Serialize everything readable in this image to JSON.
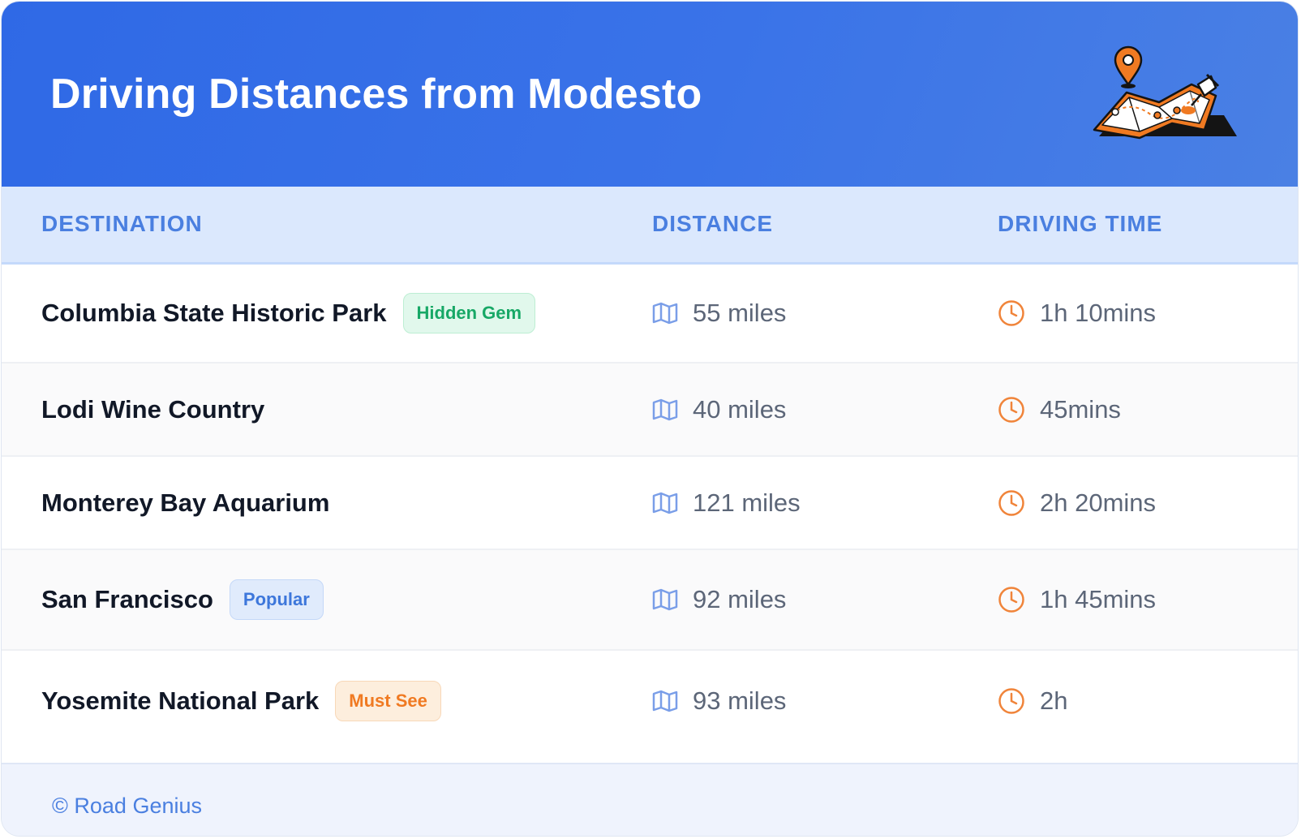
{
  "title": "Driving Distances from Modesto",
  "header_illustration": "map-pin-illustration",
  "table": {
    "columns": [
      "DESTINATION",
      "DISTANCE",
      "DRIVING TIME"
    ],
    "rows": [
      {
        "destination": "Columbia State Historic Park",
        "badge": "Hidden Gem",
        "badge_style": "green",
        "distance": "55 miles",
        "time": "1h 10mins"
      },
      {
        "destination": "Lodi Wine Country",
        "badge": "",
        "badge_style": "",
        "distance": "40 miles",
        "time": "45mins"
      },
      {
        "destination": "Monterey Bay Aquarium",
        "badge": "",
        "badge_style": "",
        "distance": "121 miles",
        "time": "2h 20mins"
      },
      {
        "destination": "San Francisco",
        "badge": "Popular",
        "badge_style": "blue",
        "distance": "92 miles",
        "time": "1h 45mins"
      },
      {
        "destination": "Yosemite National Park",
        "badge": "Must See",
        "badge_style": "orange",
        "distance": "93 miles",
        "time": "2h"
      }
    ]
  },
  "icons": {
    "distance": "map-icon",
    "time": "clock-icon"
  },
  "footer": {
    "credit": "© Road Genius"
  },
  "colors": {
    "header_bg": "#2f69e6",
    "accent_blue": "#4a7fe0",
    "clock_orange": "#f0843a",
    "map_icon_blue": "#7a9ee8"
  }
}
